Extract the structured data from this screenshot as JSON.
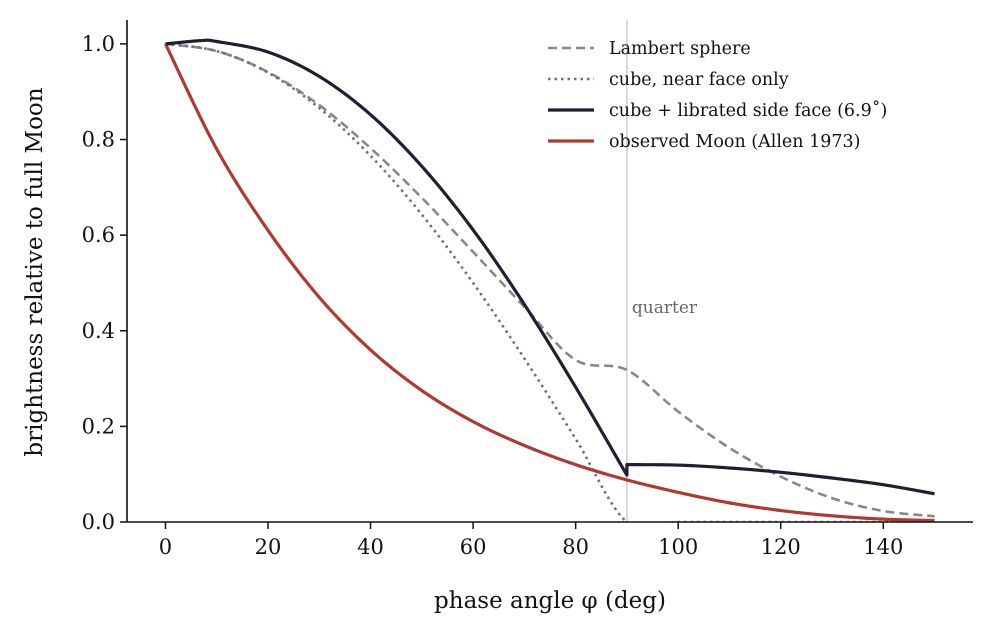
{
  "chart_data": {
    "type": "line",
    "xlabel": "phase angle φ (deg)",
    "ylabel": "brightness relative to full Moon",
    "xlim": [
      -7.5,
      157.5
    ],
    "ylim": [
      0,
      1.05
    ],
    "xticks": [
      0,
      20,
      40,
      60,
      80,
      100,
      120,
      140
    ],
    "yticks": [
      0.0,
      0.2,
      0.4,
      0.6,
      0.8,
      1.0
    ],
    "grid": false,
    "legend_position": "top-right",
    "vline": {
      "x": 90,
      "label": "quarter",
      "color": "#cccccc"
    },
    "series": [
      {
        "name": "Lambert sphere",
        "color": "#888888",
        "style": "dashed",
        "x": [
          0,
          10,
          20,
          30,
          40,
          50,
          60,
          70,
          80,
          90,
          100,
          110,
          120,
          130,
          140,
          150
        ],
        "y": [
          1.0,
          0.985,
          0.941,
          0.872,
          0.782,
          0.678,
          0.565,
          0.45,
          0.339,
          0.318,
          0.231,
          0.155,
          0.095,
          0.05,
          0.023,
          0.012
        ]
      },
      {
        "name": "cube, near face only",
        "color": "#6a7085",
        "style": "dotted",
        "x": [
          0,
          10,
          20,
          30,
          40,
          50,
          60,
          70,
          80,
          90,
          100,
          110,
          120,
          130,
          140,
          150
        ],
        "y": [
          1.0,
          0.985,
          0.94,
          0.866,
          0.766,
          0.643,
          0.5,
          0.342,
          0.174,
          0.0,
          0.0,
          0.0,
          0.0,
          0.0,
          0.0,
          0.0
        ]
      },
      {
        "name": "cube + librated side face (6.9˚)",
        "color": "#1c2031",
        "style": "solid",
        "x": [
          0,
          7,
          10,
          20,
          30,
          40,
          50,
          60,
          70,
          80,
          90,
          90.001,
          100,
          110,
          120,
          130,
          140,
          150
        ],
        "y": [
          1.0,
          1.007,
          1.005,
          0.983,
          0.932,
          0.852,
          0.744,
          0.611,
          0.455,
          0.282,
          0.098,
          0.12,
          0.119,
          0.113,
          0.104,
          0.092,
          0.078,
          0.059
        ]
      },
      {
        "name": "observed Moon (Allen 1973)",
        "color": "#b03a32",
        "style": "solid",
        "x": [
          0,
          10,
          20,
          30,
          40,
          50,
          60,
          70,
          80,
          90,
          100,
          110,
          120,
          130,
          140,
          150
        ],
        "y": [
          1.0,
          0.78,
          0.61,
          0.47,
          0.36,
          0.275,
          0.21,
          0.16,
          0.12,
          0.088,
          0.062,
          0.04,
          0.024,
          0.013,
          0.006,
          0.003
        ]
      }
    ]
  }
}
